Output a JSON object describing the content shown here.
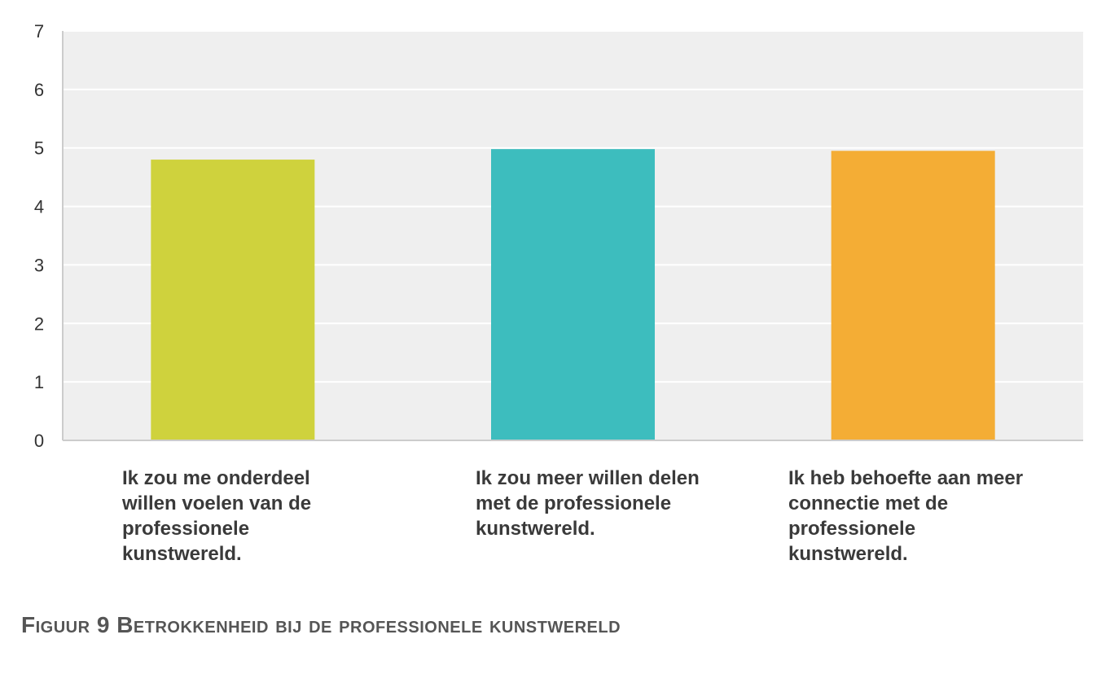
{
  "chart_data": {
    "type": "bar",
    "categories": [
      "Ik zou me onderdeel willen voelen van de professionele kunstwereld.",
      "Ik zou meer willen delen met de professionele kunstwereld.",
      "Ik heb behoefte aan meer connectie met de professionele kunstwereld."
    ],
    "values": [
      4.8,
      4.98,
      4.95
    ],
    "colors": [
      "#cfd23d",
      "#3dbdbe",
      "#f4ad35"
    ],
    "ylim": [
      0,
      7
    ],
    "yticks": [
      "0",
      "1",
      "2",
      "3",
      "4",
      "5",
      "6",
      "7"
    ],
    "grid": true,
    "legend": "none",
    "title": "",
    "xlabel": "",
    "ylabel": ""
  },
  "caption": {
    "label": "Figuur 9",
    "text": "Betrokkenheid bij de professionele kunstwereld"
  }
}
